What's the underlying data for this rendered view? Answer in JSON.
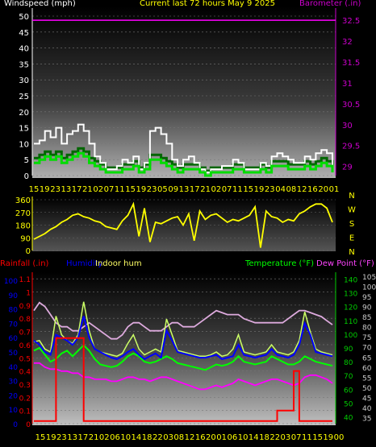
{
  "header": {
    "left_title": "Windspeed (mph)",
    "center_title": "Current last 72 hours May 9 2025",
    "right_title": "Barometer (.in)"
  },
  "colors": {
    "wind_avg": "#00dd00",
    "wind_gust": "#ffffff",
    "wind_dark": "#006600",
    "barometer": "#ff00ff",
    "direction": "#ffff00",
    "rainfall": "#ff0000",
    "humidity": "#0000ff",
    "indoor_hum": "#ccff66",
    "temperature": "#00ff00",
    "dew_point": "#ff00ff",
    "dew_point_faded": "#ddaadd",
    "axis_yellow": "#ffff00",
    "axis_blue": "#0000ff",
    "axis_purple": "#cc00cc",
    "axis_green": "#00cc00"
  },
  "chart_data": [
    {
      "type": "line",
      "title": "Current last 72 hours May 9 2025",
      "ylabel": "Windspeed (mph)",
      "ylabel_right": "Barometer (.in)",
      "ylim": [
        0,
        50
      ],
      "yticks": [
        0,
        5,
        10,
        15,
        20,
        25,
        30,
        35,
        40,
        45,
        50
      ],
      "ylim_right": [
        28.78,
        32.6
      ],
      "yticks_right": [
        29,
        29.5,
        30,
        30.5,
        31,
        31.5,
        32,
        32.5
      ],
      "x_tick_labels": [
        "15",
        "19",
        "23",
        "13",
        "17",
        "21",
        "02",
        "07",
        "11",
        "15",
        "19",
        "23",
        "05",
        "09",
        "13",
        "17",
        "21",
        "02",
        "07",
        "11",
        "15",
        "19",
        "23",
        "04",
        "08",
        "12",
        "16",
        "20",
        "01"
      ],
      "grid": true,
      "series": [
        {
          "name": "gust",
          "values": [
            10,
            11,
            14,
            12,
            15,
            10,
            13,
            14,
            16,
            14,
            10,
            6,
            4,
            2,
            2,
            3,
            5,
            4,
            6,
            2,
            4,
            14,
            15,
            13,
            10,
            5,
            3,
            5,
            6,
            4,
            2,
            1,
            2,
            2,
            3,
            3,
            5,
            4,
            2,
            2,
            2,
            4,
            3,
            6,
            7,
            6,
            5,
            4,
            4,
            6,
            5,
            7,
            8,
            7,
            3
          ]
        },
        {
          "name": "average",
          "values": [
            4,
            5,
            6,
            5,
            6,
            4,
            5,
            6,
            7,
            6,
            4,
            3,
            2,
            1,
            1,
            1,
            2,
            2,
            3,
            1,
            2,
            5,
            5,
            4,
            3,
            2,
            1,
            2,
            2,
            2,
            1,
            0,
            1,
            1,
            1,
            1,
            2,
            2,
            1,
            1,
            1,
            2,
            1,
            3,
            3,
            3,
            2,
            2,
            2,
            3,
            2,
            3,
            4,
            3,
            1
          ]
        },
        {
          "name": "barometer",
          "values": [
            32.5,
            32.5
          ]
        }
      ]
    },
    {
      "type": "line",
      "ylabel_right_letters": [
        "N",
        "W",
        "S",
        "E",
        "N"
      ],
      "ylim": [
        0,
        360
      ],
      "yticks": [
        0,
        90,
        180,
        270,
        360
      ],
      "series": [
        {
          "name": "direction",
          "values": [
            80,
            100,
            120,
            150,
            170,
            200,
            220,
            250,
            260,
            240,
            230,
            210,
            200,
            170,
            160,
            150,
            210,
            250,
            330,
            100,
            300,
            60,
            200,
            190,
            210,
            230,
            240,
            180,
            260,
            70,
            280,
            220,
            250,
            260,
            230,
            200,
            220,
            210,
            230,
            250,
            310,
            20,
            280,
            240,
            230,
            200,
            220,
            210,
            260,
            280,
            310,
            330,
            330,
            300,
            200
          ]
        }
      ]
    },
    {
      "type": "line",
      "ylabel": "Rainfall (.in)",
      "ylim": [
        0,
        1.15
      ],
      "yticks": [
        0,
        0.1,
        0.2,
        0.3,
        0.4,
        0.5,
        0.6,
        0.7,
        0.8,
        0.9,
        1.0,
        1.1
      ],
      "humidity_axis": {
        "label": "Humidity",
        "yticks": [
          0,
          10,
          20,
          30,
          40,
          50,
          60,
          70,
          80,
          90,
          100
        ]
      },
      "indoor_label": "Indoor hum",
      "temp_axis": {
        "label": "Temperature (°F)",
        "yticks": [
          40,
          50,
          60,
          70,
          80,
          90,
          100,
          110,
          120,
          130,
          140
        ]
      },
      "dew_axis": {
        "label": "Dew Point (°F)",
        "yticks": [
          35,
          40,
          45,
          50,
          55,
          60,
          65,
          70,
          75,
          80,
          85,
          90,
          95,
          100,
          105
        ]
      },
      "x_tick_labels": [
        "15",
        "19",
        "23",
        "13",
        "17",
        "21",
        "02",
        "06",
        "10",
        "14",
        "18",
        "22",
        "03",
        "08",
        "12",
        "16",
        "20",
        "01",
        "06",
        "10",
        "14",
        "18",
        "22",
        "03",
        "07",
        "11",
        "15",
        "19",
        "00"
      ],
      "series": [
        {
          "name": "rainfall",
          "values": [
            0.02,
            0.02,
            0.02,
            0.02,
            0.65,
            0.65,
            0.65,
            0.65,
            0.65,
            0.02,
            0.02,
            0.02,
            0.02,
            0.02,
            0.02,
            0.02,
            0.02,
            0.02,
            0.02,
            0.02,
            0.02,
            0.02,
            0.02,
            0.02,
            0.02,
            0.02,
            0.02,
            0.02,
            0.02,
            0.02,
            0.02,
            0.02,
            0.02,
            0.02,
            0.02,
            0.02,
            0.02,
            0.02,
            0.02,
            0.02,
            0.02,
            0.02,
            0.02,
            0.02,
            0.1,
            0.1,
            0.1,
            0.4,
            0.02,
            0.02,
            0.02,
            0.02,
            0.02,
            0.02,
            0.02
          ]
        },
        {
          "name": "humidity",
          "values": [
            58,
            55,
            50,
            48,
            62,
            60,
            58,
            55,
            60,
            75,
            60,
            52,
            50,
            48,
            46,
            45,
            47,
            50,
            52,
            48,
            45,
            47,
            49,
            46,
            65,
            58,
            50,
            49,
            48,
            47,
            46,
            46,
            47,
            48,
            45,
            46,
            47,
            55,
            48,
            47,
            46,
            47,
            48,
            52,
            48,
            47,
            46,
            48,
            55,
            70,
            62,
            50,
            49,
            48,
            47
          ]
        },
        {
          "name": "indoor hum",
          "values": [
            57,
            58,
            52,
            50,
            75,
            62,
            58,
            56,
            62,
            85,
            65,
            52,
            50,
            49,
            48,
            47,
            49,
            56,
            62,
            52,
            48,
            50,
            52,
            50,
            73,
            62,
            51,
            50,
            49,
            48,
            47,
            47,
            48,
            50,
            47,
            48,
            52,
            62,
            50,
            49,
            48,
            49,
            50,
            55,
            50,
            49,
            48,
            50,
            58,
            78,
            64,
            52,
            50,
            49,
            48
          ]
        },
        {
          "name": "temperature",
          "values": [
            88,
            90,
            85,
            80,
            82,
            86,
            88,
            84,
            88,
            92,
            88,
            82,
            78,
            77,
            76,
            77,
            80,
            84,
            86,
            84,
            80,
            79,
            80,
            82,
            84,
            82,
            79,
            78,
            77,
            76,
            75,
            74,
            76,
            78,
            77,
            78,
            80,
            84,
            80,
            79,
            78,
            79,
            80,
            84,
            82,
            80,
            78,
            78,
            80,
            84,
            82,
            80,
            79,
            78,
            77
          ]
        },
        {
          "name": "dew point",
          "values": [
            62,
            62,
            60,
            59,
            59,
            58,
            58,
            57,
            57,
            55,
            55,
            54,
            54,
            54,
            53,
            53,
            54,
            55,
            55,
            54,
            54,
            53,
            54,
            55,
            55,
            54,
            53,
            52,
            51,
            50,
            49,
            49,
            50,
            51,
            50,
            51,
            52,
            54,
            53,
            52,
            51,
            52,
            53,
            54,
            54,
            53,
            52,
            51,
            52,
            55,
            56,
            56,
            55,
            54,
            52
          ]
        },
        {
          "name": "dew point faded",
          "values": [
            88,
            92,
            90,
            86,
            82,
            80,
            80,
            78,
            78,
            80,
            82,
            80,
            78,
            76,
            74,
            74,
            76,
            80,
            82,
            82,
            80,
            78,
            78,
            78,
            80,
            82,
            82,
            80,
            80,
            80,
            82,
            84,
            86,
            88,
            87,
            86,
            86,
            86,
            84,
            83,
            82,
            82,
            82,
            82,
            82,
            82,
            84,
            86,
            88,
            88,
            87,
            86,
            85,
            83,
            81
          ]
        }
      ]
    }
  ]
}
